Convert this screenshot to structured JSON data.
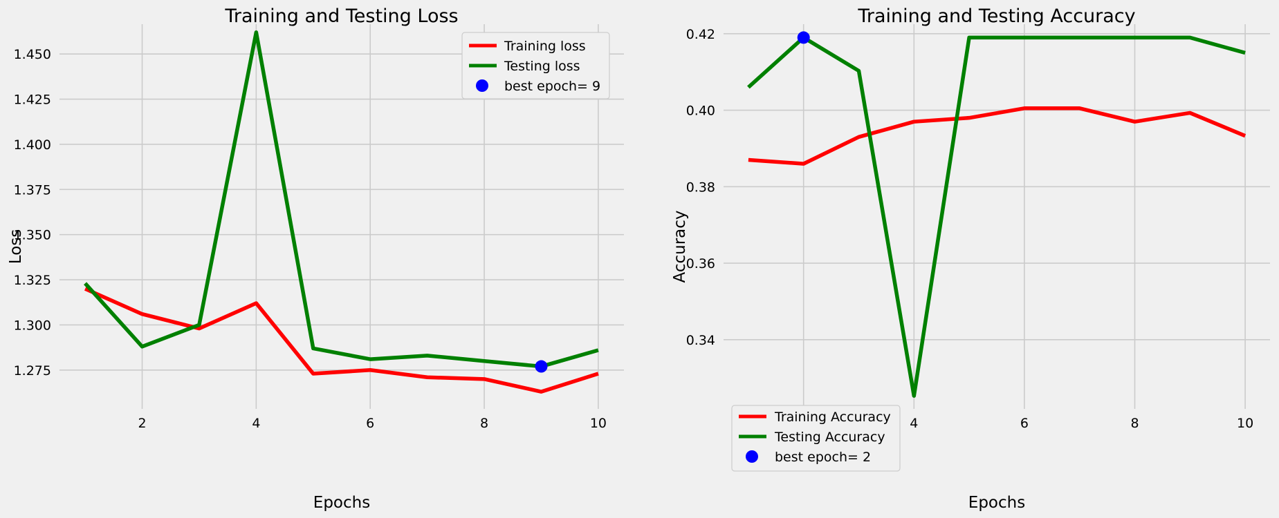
{
  "chart_data": [
    {
      "type": "line",
      "title": "Training and Testing Loss",
      "xlabel": "Epochs",
      "ylabel": "Loss",
      "x": [
        1,
        2,
        3,
        4,
        5,
        6,
        7,
        8,
        9,
        10
      ],
      "xlim": [
        0.55,
        10.45
      ],
      "ylim": [
        1.2535,
        1.4665
      ],
      "xticks": [
        2,
        4,
        6,
        8,
        10
      ],
      "xtick_labels": [
        "2",
        "4",
        "6",
        "8",
        "10"
      ],
      "yticks": [
        1.275,
        1.3,
        1.325,
        1.35,
        1.375,
        1.4,
        1.425,
        1.45
      ],
      "ytick_labels": [
        "1.275",
        "1.300",
        "1.325",
        "1.350",
        "1.375",
        "1.400",
        "1.425",
        "1.450"
      ],
      "grid": true,
      "legend_position": "top-right",
      "series": [
        {
          "name": "Training loss",
          "color": "#ff0000",
          "values": [
            1.32,
            1.306,
            1.298,
            1.312,
            1.273,
            1.275,
            1.271,
            1.27,
            1.263,
            1.273
          ]
        },
        {
          "name": "Testing loss",
          "color": "#008000",
          "values": [
            1.323,
            1.288,
            1.3,
            1.462,
            1.287,
            1.281,
            1.283,
            1.28,
            1.277,
            1.286
          ]
        }
      ],
      "best_point": {
        "label": "best epoch= 9",
        "x": 9,
        "y": 1.277,
        "color": "#0000ff"
      }
    },
    {
      "type": "line",
      "title": "Training and Testing Accuracy",
      "xlabel": "Epochs",
      "ylabel": "Accuracy",
      "x": [
        1,
        2,
        3,
        4,
        5,
        6,
        7,
        8,
        9,
        10
      ],
      "xlim": [
        0.55,
        10.45
      ],
      "ylim": [
        0.3219,
        0.4225
      ],
      "xticks": [
        2,
        4,
        6,
        8,
        10
      ],
      "xtick_labels": [
        "2",
        "4",
        "6",
        "8",
        "10"
      ],
      "yticks": [
        0.34,
        0.36,
        0.38,
        0.4,
        0.42
      ],
      "ytick_labels": [
        "0.34",
        "0.36",
        "0.38",
        "0.40",
        "0.42"
      ],
      "grid": true,
      "legend_position": "bottom-left",
      "series": [
        {
          "name": "Training Accuracy",
          "color": "#ff0000",
          "values": [
            0.387,
            0.386,
            0.393,
            0.397,
            0.398,
            0.4005,
            0.4005,
            0.397,
            0.3993,
            0.3933
          ]
        },
        {
          "name": "Testing Accuracy",
          "color": "#008000",
          "values": [
            0.406,
            0.419,
            0.4103,
            0.3253,
            0.419,
            0.419,
            0.419,
            0.419,
            0.419,
            0.415
          ]
        }
      ],
      "best_point": {
        "label": "best epoch= 2",
        "x": 2,
        "y": 0.419,
        "color": "#0000ff"
      }
    }
  ]
}
